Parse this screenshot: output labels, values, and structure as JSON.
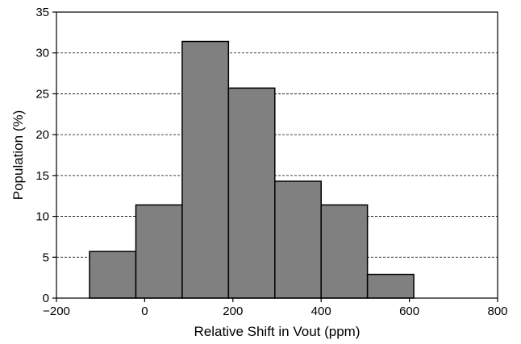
{
  "chart_data": {
    "type": "bar",
    "subtype": "histogram",
    "title": "",
    "xlabel": "Relative Shift in Vout (ppm)",
    "ylabel": "Population (%)",
    "xlim": [
      -200,
      800
    ],
    "ylim": [
      0,
      35
    ],
    "xticks": [
      -200,
      0,
      200,
      400,
      600,
      800
    ],
    "xtick_labels": [
      "−200",
      "0",
      "200",
      "400",
      "600",
      "800"
    ],
    "yticks": [
      0,
      5,
      10,
      15,
      20,
      25,
      30,
      35
    ],
    "ytick_labels": [
      "0",
      "5",
      "10",
      "15",
      "20",
      "25",
      "30",
      "35"
    ],
    "grid": "y-dashed",
    "bar_color": "#808080",
    "edge_color": "#000000",
    "bins": [
      {
        "x0": -125,
        "x1": -20,
        "value": 5.7
      },
      {
        "x0": -20,
        "x1": 85,
        "value": 11.4
      },
      {
        "x0": 85,
        "x1": 190,
        "value": 31.4
      },
      {
        "x0": 190,
        "x1": 295,
        "value": 25.7
      },
      {
        "x0": 295,
        "x1": 400,
        "value": 14.3
      },
      {
        "x0": 400,
        "x1": 505,
        "value": 11.4
      },
      {
        "x0": 505,
        "x1": 610,
        "value": 2.9
      }
    ]
  }
}
